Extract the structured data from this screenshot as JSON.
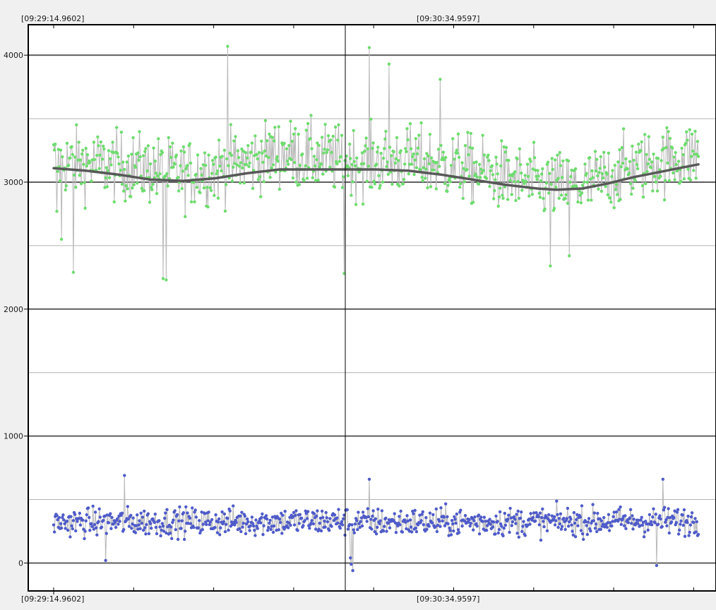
{
  "chart_data": {
    "type": "line",
    "title": "",
    "xlabel": "",
    "ylabel": "",
    "x_tick_labels": [
      "[09:29:14.9602]",
      "[09:30:34.9597]"
    ],
    "y_ticks": [
      0,
      1000,
      2000,
      3000,
      4000
    ],
    "y_tick_labels": [
      "0",
      "1000",
      "2000",
      "3000",
      "4000"
    ],
    "ylim": [
      -220,
      4240
    ],
    "grid": true,
    "cursor_label": "[09:30:34.9597]",
    "colors": {
      "background": "#ffffff",
      "frame": "#000000",
      "grid_major": "#5f5f5f",
      "grid_minor": "#b4b4b4",
      "series_line": "#b9b9b9",
      "green_marker": "#6fdc6f",
      "blue_marker": "#4f5bc9",
      "trend": "#585858"
    },
    "series": [
      {
        "marker_color": "#6fdc6f",
        "n_points": 820,
        "baseline": [
          [
            0,
            3160
          ],
          [
            0.12,
            3120
          ],
          [
            0.2,
            3060
          ],
          [
            0.27,
            3120
          ],
          [
            0.35,
            3230
          ],
          [
            0.48,
            3150
          ],
          [
            0.55,
            3180
          ],
          [
            0.65,
            3100
          ],
          [
            0.75,
            2980
          ],
          [
            0.82,
            2960
          ],
          [
            0.9,
            3120
          ],
          [
            1,
            3220
          ]
        ],
        "spread": 240,
        "spikes": [
          [
            0.03,
            2290
          ],
          [
            0.005,
            2770
          ],
          [
            0.012,
            2550
          ],
          [
            0.17,
            2240
          ],
          [
            0.175,
            2230
          ],
          [
            0.27,
            4070
          ],
          [
            0.45,
            2280
          ],
          [
            0.49,
            4060
          ],
          [
            0.52,
            3930
          ],
          [
            0.6,
            3810
          ],
          [
            0.77,
            2340
          ],
          [
            0.8,
            2420
          ]
        ]
      },
      {
        "marker_color": "#4f5bc9",
        "n_points": 820,
        "baseline": [
          [
            0,
            320
          ],
          [
            0.45,
            330
          ],
          [
            0.49,
            320
          ],
          [
            1,
            330
          ]
        ],
        "spread": 100,
        "spikes": [
          [
            0.11,
            690
          ],
          [
            0.46,
            40
          ],
          [
            0.462,
            -10
          ],
          [
            0.464,
            -60
          ],
          [
            0.49,
            660
          ],
          [
            0.945,
            660
          ],
          [
            0.935,
            -20
          ],
          [
            0.08,
            20
          ]
        ]
      },
      {
        "name": "",
        "line_color": "#585858",
        "line_width": 3.5,
        "points": [
          [
            0,
            3110
          ],
          [
            0.05,
            3090
          ],
          [
            0.1,
            3060
          ],
          [
            0.15,
            3020
          ],
          [
            0.2,
            3010
          ],
          [
            0.25,
            3030
          ],
          [
            0.3,
            3070
          ],
          [
            0.35,
            3100
          ],
          [
            0.4,
            3100
          ],
          [
            0.45,
            3100
          ],
          [
            0.5,
            3100
          ],
          [
            0.55,
            3090
          ],
          [
            0.6,
            3060
          ],
          [
            0.65,
            3020
          ],
          [
            0.7,
            2980
          ],
          [
            0.75,
            2950
          ],
          [
            0.78,
            2940
          ],
          [
            0.82,
            2950
          ],
          [
            0.86,
            2990
          ],
          [
            0.9,
            3040
          ],
          [
            0.95,
            3090
          ],
          [
            1,
            3140
          ]
        ]
      }
    ]
  }
}
